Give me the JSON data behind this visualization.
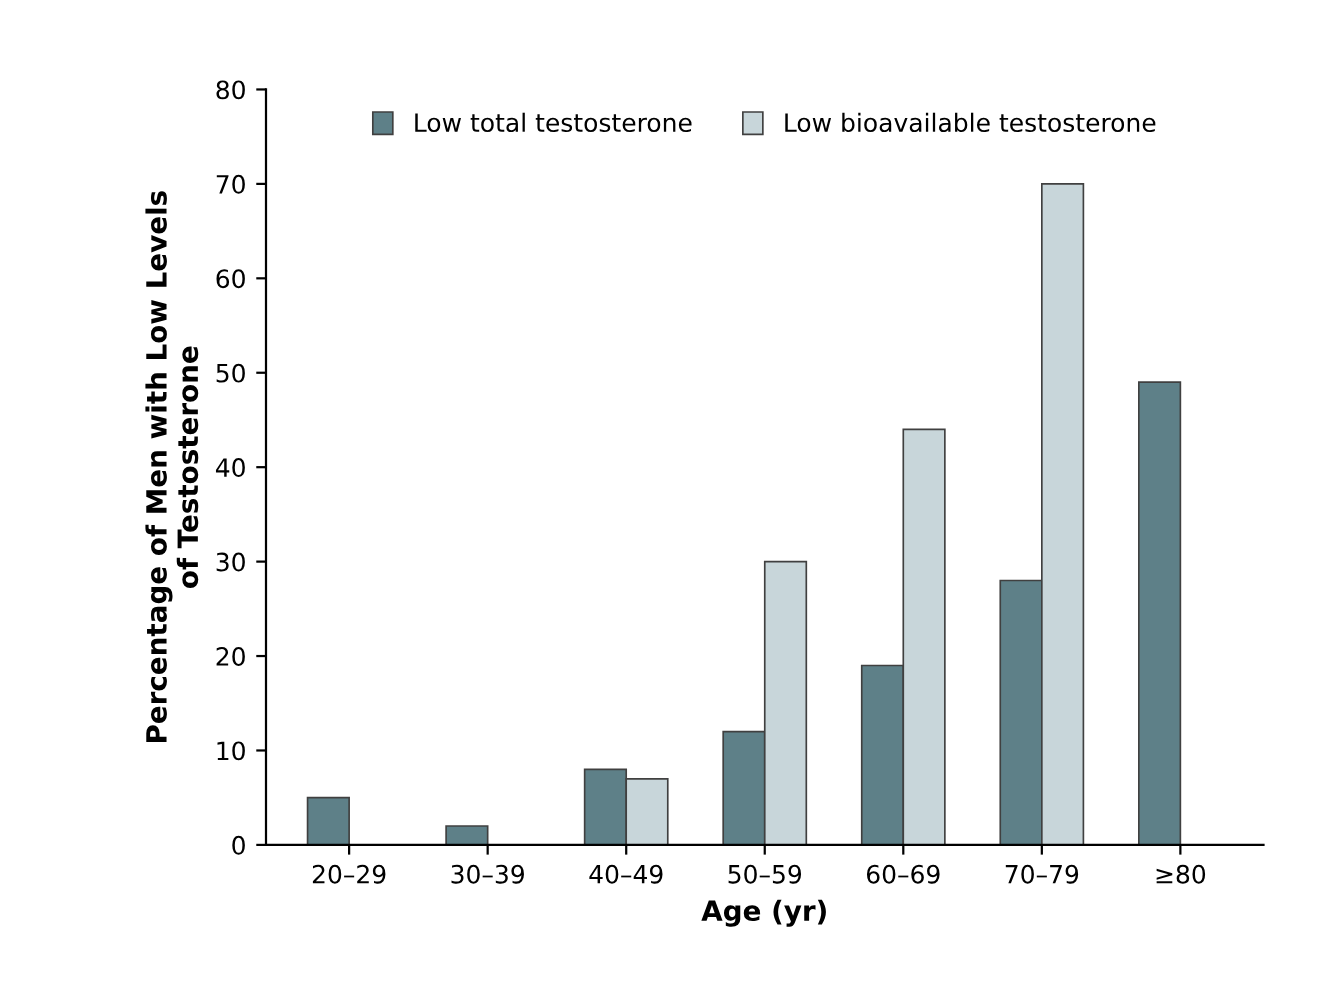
{
  "chart_data": {
    "type": "bar",
    "xlabel": "Age (yr)",
    "ylabel": "Percentage of Men with Low Levels\nof Testosterone",
    "categories": [
      "20–29",
      "30–39",
      "40–49",
      "50–59",
      "60–69",
      "70–79",
      "≥80"
    ],
    "series": [
      {
        "name": "Low total testosterone",
        "color": "#5e8088",
        "values": [
          5,
          2,
          8,
          12,
          19,
          28,
          49
        ]
      },
      {
        "name": "Low bioavailable testosterone",
        "color": "#c8d6da",
        "values": [
          null,
          null,
          7,
          30,
          44,
          70,
          null
        ]
      }
    ],
    "ylim": [
      0,
      80
    ],
    "yticks": [
      0,
      10,
      20,
      30,
      40,
      50,
      60,
      70,
      80
    ],
    "grid": false,
    "legend": "top"
  }
}
